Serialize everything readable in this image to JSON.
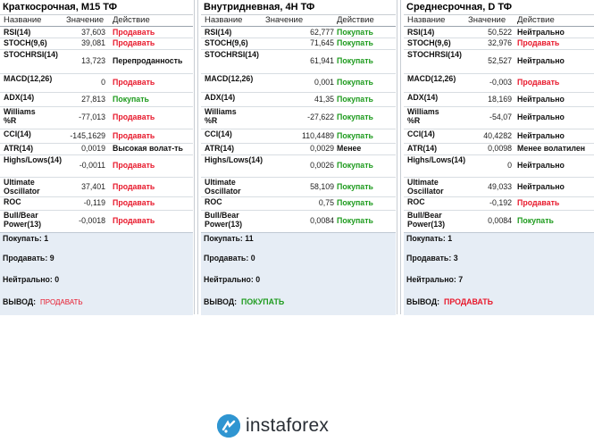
{
  "columns": {
    "name": "Название",
    "value": "Значение",
    "action": "Действие"
  },
  "panels": [
    {
      "title": "Краткосрочная, M15 ТФ",
      "rows": [
        {
          "name": "RSI(14)",
          "value": "37,603",
          "action": "Продавать",
          "kind": "sell"
        },
        {
          "name": "STOCH(9,6)",
          "value": "39,081",
          "action": "Продавать",
          "kind": "sell"
        },
        {
          "name": "STOCHRSI(14)",
          "value": "13,723",
          "action": "Перепроданность",
          "kind": "neut"
        },
        {
          "name": "MACD(12,26)",
          "value": "0",
          "action": "Продавать",
          "kind": "sell"
        },
        {
          "name": "ADX(14)",
          "value": "27,813",
          "action": "Покупать",
          "kind": "buy"
        },
        {
          "name": "Williams %R",
          "value": "-77,013",
          "action": "Продавать",
          "kind": "sell"
        },
        {
          "name": "CCI(14)",
          "value": "-145,1629",
          "action": "Продавать",
          "kind": "sell"
        },
        {
          "name": "ATR(14)",
          "value": "0,0019",
          "action": "Высокая волат-ть",
          "kind": "neut"
        },
        {
          "name": "Highs/Lows(14)",
          "value": "-0,0011",
          "action": "Продавать",
          "kind": "sell"
        },
        {
          "name": "Ultimate Oscillator",
          "value": "37,401",
          "action": "Продавать",
          "kind": "sell"
        },
        {
          "name": "ROC",
          "value": "-0,119",
          "action": "Продавать",
          "kind": "sell"
        },
        {
          "name": "Bull/Bear Power(13)",
          "value": "-0,0018",
          "action": "Продавать",
          "kind": "sell"
        }
      ],
      "summary": {
        "buy": "Покупать: 1",
        "sell": "Продавать: 9",
        "neutral": "Нейтрально: 0",
        "conclusion_label": "ВЫВОД:",
        "conclusion": "ПРОДАВАТЬ",
        "conclusion_kind": "sell"
      }
    },
    {
      "title": "Внутридневная, 4H ТФ",
      "rows": [
        {
          "name": "RSI(14)",
          "value": "62,777",
          "action": "Покупать",
          "kind": "buy"
        },
        {
          "name": "STOCH(9,6)",
          "value": "71,645",
          "action": "Покупать",
          "kind": "buy"
        },
        {
          "name": "STOCHRSI(14)",
          "value": "61,941",
          "action": "Покупать",
          "kind": "buy"
        },
        {
          "name": "MACD(12,26)",
          "value": "0,001",
          "action": "Покупать",
          "kind": "buy"
        },
        {
          "name": "ADX(14)",
          "value": "41,35",
          "action": "Покупать",
          "kind": "buy"
        },
        {
          "name": "Williams %R",
          "value": "-27,622",
          "action": "Покупать",
          "kind": "buy"
        },
        {
          "name": "CCI(14)",
          "value": "110,4489",
          "action": "Покупать",
          "kind": "buy"
        },
        {
          "name": "ATR(14)",
          "value": "0,0029",
          "action": "Менее",
          "kind": "neut"
        },
        {
          "name": "Highs/Lows(14)",
          "value": "0,0026",
          "action": "Покупать",
          "kind": "buy"
        },
        {
          "name": "Ultimate Oscillator",
          "value": "58,109",
          "action": "Покупать",
          "kind": "buy"
        },
        {
          "name": "ROC",
          "value": "0,75",
          "action": "Покупать",
          "kind": "buy"
        },
        {
          "name": "Bull/Bear Power(13)",
          "value": "0,0084",
          "action": "Покупать",
          "kind": "buy"
        }
      ],
      "summary": {
        "buy": "Покупать: 11",
        "sell": "Продавать: 0",
        "neutral": "Нейтрально: 0",
        "conclusion_label": "ВЫВОД:",
        "conclusion": "ПОКУПАТЬ",
        "conclusion_kind": "buy"
      }
    },
    {
      "title": "Среднесрочная, D ТФ",
      "rows": [
        {
          "name": "RSI(14)",
          "value": "50,522",
          "action": "Нейтрально",
          "kind": "neut"
        },
        {
          "name": "STOCH(9,6)",
          "value": "32,976",
          "action": "Продавать",
          "kind": "sell"
        },
        {
          "name": "STOCHRSI(14)",
          "value": "52,527",
          "action": "Нейтрально",
          "kind": "neut"
        },
        {
          "name": "MACD(12,26)",
          "value": "-0,003",
          "action": "Продавать",
          "kind": "sell"
        },
        {
          "name": "ADX(14)",
          "value": "18,169",
          "action": "Нейтрально",
          "kind": "neut"
        },
        {
          "name": "Williams %R",
          "value": "-54,07",
          "action": "Нейтрально",
          "kind": "neut"
        },
        {
          "name": "CCI(14)",
          "value": "40,4282",
          "action": "Нейтрально",
          "kind": "neut"
        },
        {
          "name": "ATR(14)",
          "value": "0,0098",
          "action": "Менее волатилен",
          "kind": "neut"
        },
        {
          "name": "Highs/Lows(14)",
          "value": "0",
          "action": "Нейтрально",
          "kind": "neut"
        },
        {
          "name": "Ultimate Oscillator",
          "value": "49,033",
          "action": "Нейтрально",
          "kind": "neut"
        },
        {
          "name": "ROC",
          "value": "-0,192",
          "action": "Продавать",
          "kind": "sell"
        },
        {
          "name": "Bull/Bear Power(13)",
          "value": "0,0084",
          "action": "Покупать",
          "kind": "buy"
        }
      ],
      "summary": {
        "buy": "Покупать: 1",
        "sell": "Продавать: 3",
        "neutral": "Нейтрально: 7",
        "conclusion_label": "ВЫВОД:",
        "conclusion": "ПРОДАВАТЬ",
        "conclusion_kind": "sell"
      }
    }
  ],
  "logo": {
    "text": "instaforex",
    "icon": "instaforex-logo-icon"
  }
}
